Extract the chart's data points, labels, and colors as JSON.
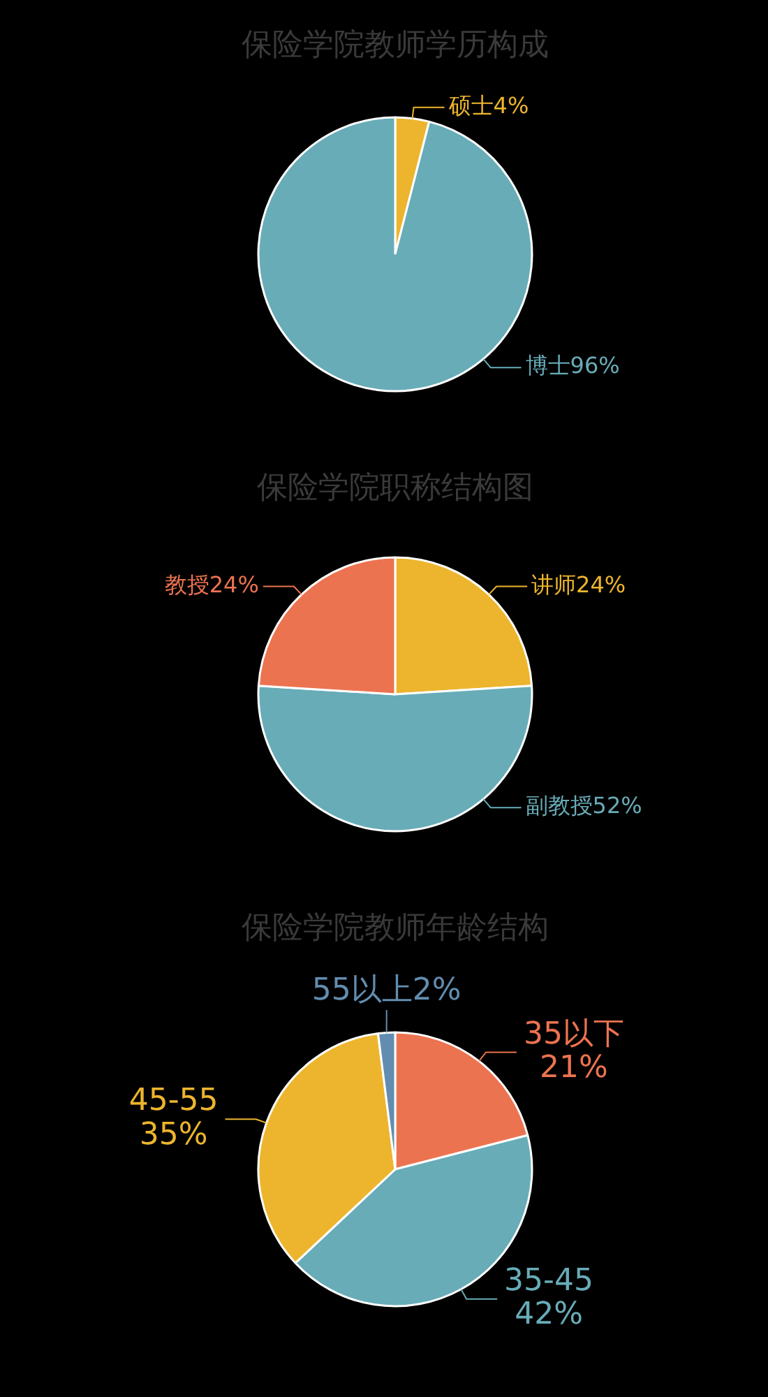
{
  "chart_data": [
    {
      "type": "pie",
      "title": "保险学院教师学历构成",
      "categories": [
        "硕士",
        "博士"
      ],
      "values": [
        4,
        96
      ],
      "colors": [
        "#edb52d",
        "#68acb8"
      ],
      "value_labels": [
        "4%",
        "96%"
      ]
    },
    {
      "type": "pie",
      "title": "保险学院职称结构图",
      "categories": [
        "讲师",
        "副教授",
        "教授"
      ],
      "values": [
        24,
        52,
        24
      ],
      "colors": [
        "#edb52d",
        "#68acb8",
        "#ec7350"
      ],
      "value_labels": [
        "24%",
        "52%",
        "24%"
      ]
    },
    {
      "type": "pie",
      "title": "保险学院教师年龄结构",
      "categories": [
        "35以下",
        "35-45",
        "45-55",
        "55以上"
      ],
      "values": [
        21,
        42,
        35,
        2
      ],
      "colors": [
        "#ec7350",
        "#68acb8",
        "#edb52d",
        "#628db0"
      ],
      "value_labels": [
        "21%",
        "42%",
        "35%",
        "2%"
      ]
    }
  ]
}
